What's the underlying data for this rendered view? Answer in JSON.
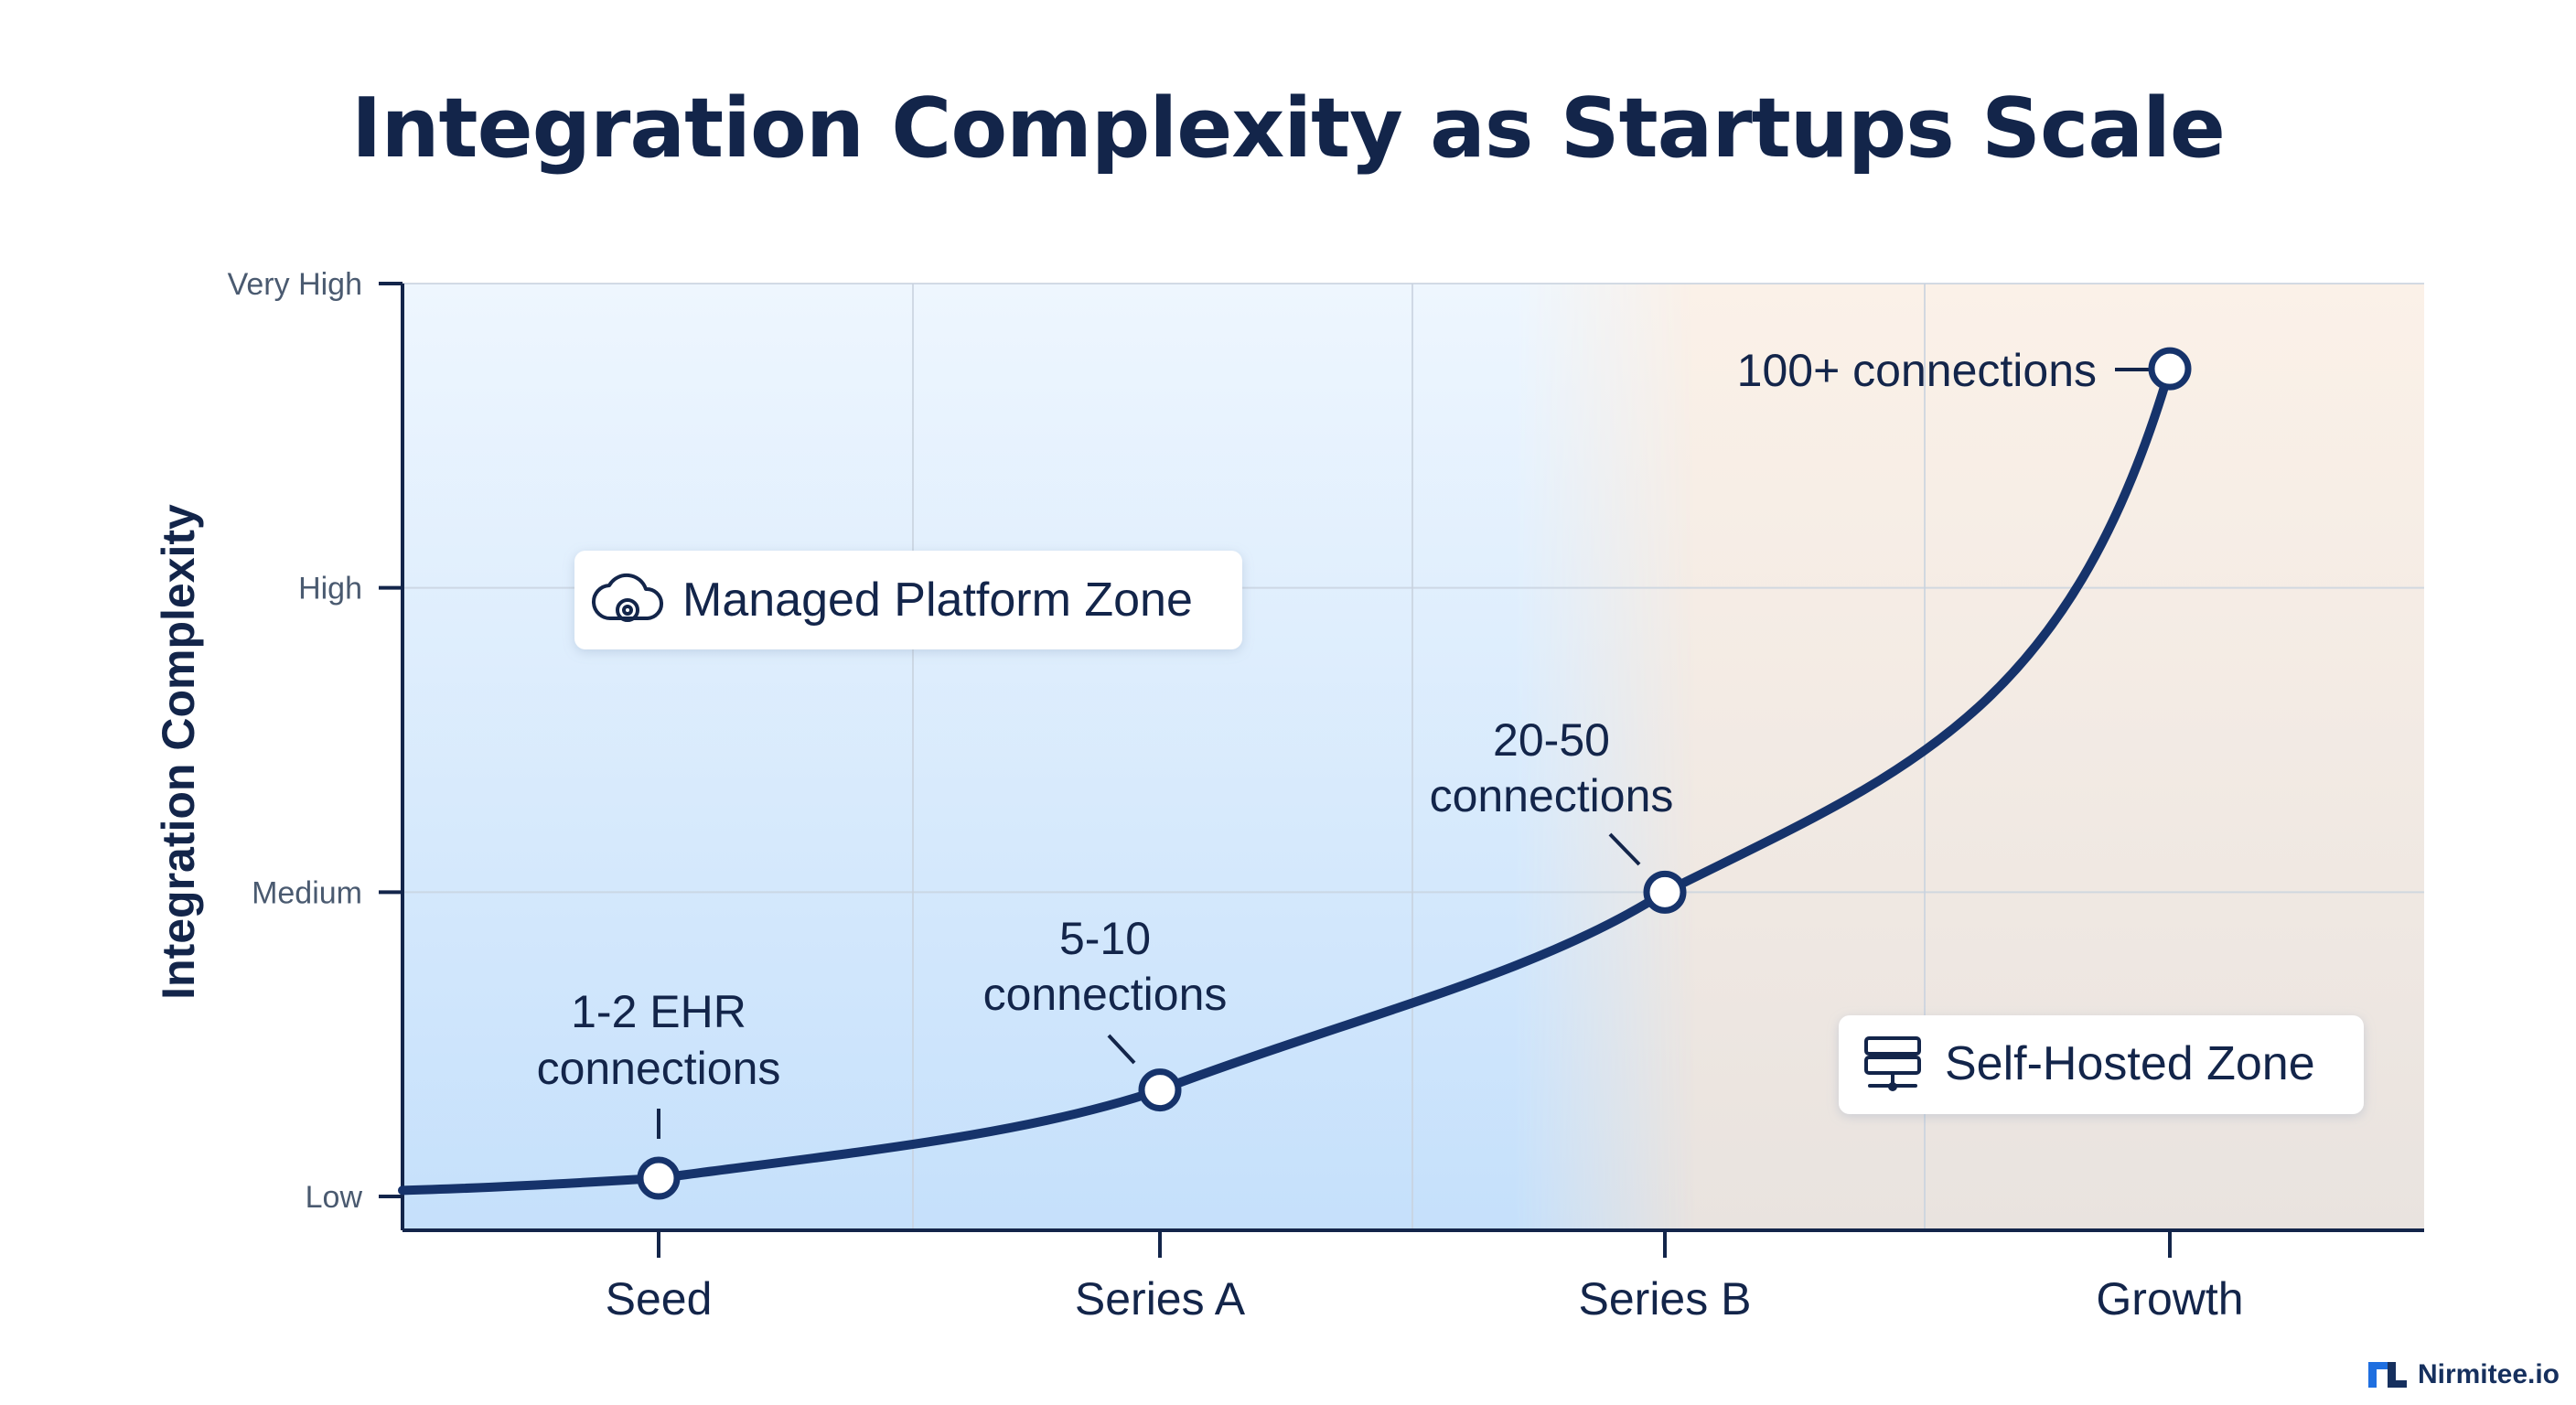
{
  "chart_data": {
    "type": "line",
    "title": "Integration Complexity as Startups Scale",
    "ylabel": "Integration Complexity",
    "xlabel": "",
    "categories": [
      "Seed",
      "Series A",
      "Series B",
      "Growth"
    ],
    "y_levels": [
      "Low",
      "Medium",
      "High",
      "Very High"
    ],
    "ylim": [
      0,
      3
    ],
    "grid": true,
    "series": [
      {
        "values": [
          0.06,
          0.35,
          1.0,
          2.72
        ],
        "point_labels": [
          "1-2 EHR connections",
          "5-10 connections",
          "20-50 connections",
          "100+ connections"
        ]
      }
    ],
    "zones": [
      {
        "label": "Managed Platform Zone",
        "icon": "cloud-gear-icon"
      },
      {
        "label": "Self-Hosted Zone",
        "icon": "server-rack-icon"
      }
    ]
  },
  "brand": {
    "name": "Nirmitee.io"
  },
  "colors": {
    "line": "#16336b",
    "text": "#13254a",
    "managed_zone": "#cfe6fb",
    "self_hosted_zone": "#f5e4d4"
  }
}
